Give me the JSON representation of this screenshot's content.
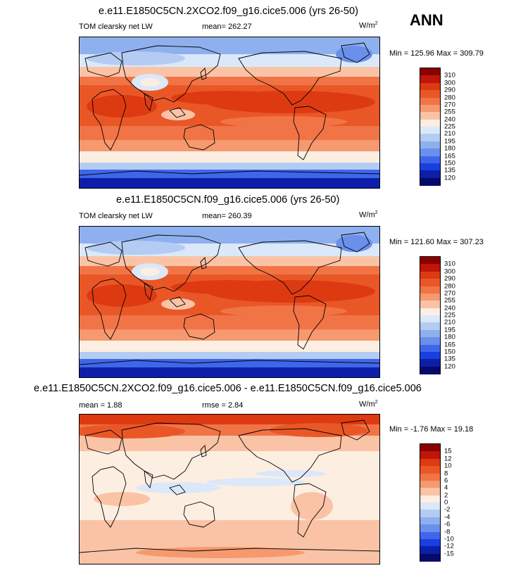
{
  "season": "ANN",
  "panels": [
    {
      "id": "p1",
      "title": "e.e11.E1850C5CN.2XCO2.f09_g16.cice5.006 (yrs 26-50)",
      "left_label": "TOM clearsky net LW",
      "center_label": "mean= 262.27",
      "units": "W/m",
      "units_sup": "2",
      "minmax": "Min = 125.96 Max = 309.79",
      "levels": [
        "310",
        "300",
        "290",
        "280",
        "270",
        "255",
        "240",
        "225",
        "210",
        "195",
        "180",
        "165",
        "150",
        "135",
        "120"
      ],
      "colors": [
        "#8b0000",
        "#c1150a",
        "#dd3a12",
        "#ea5727",
        "#f17447",
        "#f6996f",
        "#fac3a6",
        "#fdeee2",
        "#dbe8f9",
        "#b4ccf3",
        "#8fb0ee",
        "#6a90eb",
        "#3f66ea",
        "#1a3fe0",
        "#0d1fa8",
        "#050a6b"
      ],
      "scheme": "abs"
    },
    {
      "id": "p2",
      "title": "e.e11.E1850C5CN.f09_g16.cice5.006 (yrs 26-50)",
      "left_label": "TOM clearsky net LW",
      "center_label": "mean= 260.39",
      "units": "W/m",
      "units_sup": "2",
      "minmax": "Min = 121.60 Max = 307.23",
      "levels": [
        "310",
        "300",
        "290",
        "280",
        "270",
        "255",
        "240",
        "225",
        "210",
        "195",
        "180",
        "165",
        "150",
        "135",
        "120"
      ],
      "colors": [
        "#8b0000",
        "#c1150a",
        "#dd3a12",
        "#ea5727",
        "#f17447",
        "#f6996f",
        "#fac3a6",
        "#fdeee2",
        "#dbe8f9",
        "#b4ccf3",
        "#8fb0ee",
        "#6a90eb",
        "#3f66ea",
        "#1a3fe0",
        "#0d1fa8",
        "#050a6b"
      ],
      "scheme": "abs"
    },
    {
      "id": "p3",
      "title": "e.e11.E1850C5CN.2XCO2.f09_g16.cice5.006 - e.e11.E1850C5CN.f09_g16.cice5.006",
      "left_label": "mean =   1.88",
      "center_label": "rmse =   2.84",
      "units": "W/m",
      "units_sup": "2",
      "minmax": "Min = -1.76 Max = 19.18",
      "levels": [
        "15",
        "12",
        "10",
        "8",
        "6",
        "4",
        "2",
        "0",
        "-2",
        "-4",
        "-6",
        "-8",
        "-10",
        "-12",
        "-15"
      ],
      "colors": [
        "#8b0000",
        "#c1150a",
        "#dd3a12",
        "#ea5727",
        "#f17447",
        "#f6996f",
        "#fac3a6",
        "#fdeee2",
        "#dbe8f9",
        "#b4ccf3",
        "#8fb0ee",
        "#6a90eb",
        "#3f66ea",
        "#1a3fe0",
        "#0d1fa8",
        "#050a6b"
      ],
      "scheme": "diff"
    }
  ]
}
